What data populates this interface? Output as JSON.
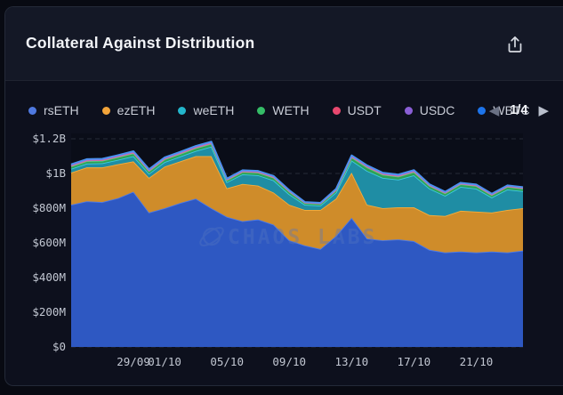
{
  "card": {
    "title": "Collateral Against Distribution"
  },
  "toolbar": {
    "share_icon": "export-share-icon"
  },
  "legend": {
    "items": [
      {
        "label": "rsETH",
        "color": "#4f79e0"
      },
      {
        "label": "ezETH",
        "color": "#f2a43a"
      },
      {
        "label": "weETH",
        "color": "#23b6cc"
      },
      {
        "label": "WETH",
        "color": "#35bd67"
      },
      {
        "label": "USDT",
        "color": "#e8486f"
      },
      {
        "label": "USDC",
        "color": "#8a5fd6"
      },
      {
        "label": "WBTC",
        "color": "#1d74ea"
      }
    ],
    "pagination": {
      "current": 1,
      "total": 4,
      "label": "1/4",
      "prev_glyph": "◀",
      "next_glyph": "▶"
    }
  },
  "watermark": {
    "text": "CHAOS LABS",
    "logo": "chaos-labs-atom-logo"
  },
  "chart_data": {
    "type": "area",
    "stacked": true,
    "title": "Collateral Against Distribution",
    "unit": "USD",
    "ylim": [
      0,
      1200
    ],
    "grid": "horizontal-dashed",
    "legend_position": "top",
    "x": [
      "25/09",
      "26/09",
      "27/09",
      "28/09",
      "29/09",
      "30/09",
      "01/10",
      "02/10",
      "03/10",
      "04/10",
      "05/10",
      "06/10",
      "07/10",
      "08/10",
      "09/10",
      "10/10",
      "11/10",
      "12/10",
      "13/10",
      "14/10",
      "15/10",
      "16/10",
      "17/10",
      "18/10",
      "19/10",
      "20/10",
      "21/10",
      "22/10",
      "23/10",
      "24/10"
    ],
    "x_ticks": [
      {
        "index": 4,
        "label": "29/09"
      },
      {
        "index": 6,
        "label": "01/10"
      },
      {
        "index": 10,
        "label": "05/10"
      },
      {
        "index": 14,
        "label": "09/10"
      },
      {
        "index": 18,
        "label": "13/10"
      },
      {
        "index": 22,
        "label": "17/10"
      },
      {
        "index": 26,
        "label": "21/10"
      }
    ],
    "y_ticks": [
      {
        "value": 0,
        "label": "$0"
      },
      {
        "value": 200,
        "label": "$200M"
      },
      {
        "value": 400,
        "label": "$400M"
      },
      {
        "value": 600,
        "label": "$600M"
      },
      {
        "value": 800,
        "label": "$800M"
      },
      {
        "value": 1000,
        "label": "$1B"
      },
      {
        "value": 1200,
        "label": "$1.2B"
      }
    ],
    "value_unit": "millions_usd",
    "series": [
      {
        "name": "rsETH",
        "fill": "#2e58c2",
        "edge": "#4c7ae8",
        "values": [
          820,
          840,
          835,
          858,
          895,
          775,
          800,
          830,
          855,
          800,
          750,
          725,
          735,
          705,
          615,
          585,
          565,
          640,
          745,
          625,
          615,
          620,
          610,
          560,
          545,
          550,
          545,
          550,
          545,
          555
        ]
      },
      {
        "name": "ezETH",
        "fill": "#cf8c2a",
        "edge": "#f5ad3c",
        "values": [
          185,
          195,
          200,
          195,
          175,
          200,
          240,
          240,
          245,
          300,
          165,
          215,
          195,
          185,
          205,
          205,
          225,
          215,
          260,
          195,
          185,
          185,
          195,
          200,
          210,
          235,
          235,
          225,
          245,
          245
        ]
      },
      {
        "name": "weETH",
        "fill": "#1f8da4",
        "edge": "#3ecbe0",
        "values": [
          22,
          22,
          24,
          26,
          30,
          24,
          26,
          28,
          30,
          55,
          35,
          55,
          60,
          70,
          60,
          30,
          25,
          35,
          70,
          195,
          175,
          160,
          185,
          153,
          117,
          138,
          133,
          87,
          118,
          98
        ]
      },
      {
        "name": "WETH",
        "fill": "#2fa055",
        "edge": "#52d584",
        "values": [
          14,
          14,
          14,
          15,
          16,
          14,
          15,
          15,
          16,
          16,
          12,
          14,
          15,
          16,
          15,
          10,
          10,
          12,
          18,
          20,
          18,
          17,
          18,
          16,
          14,
          15,
          15,
          13,
          15,
          15
        ]
      },
      {
        "name": "USDT",
        "fill": "#d84672",
        "edge": "#e86a90",
        "values": [
          4,
          4,
          4,
          4,
          4,
          4,
          4,
          4,
          4,
          4,
          3,
          3,
          3,
          3,
          3,
          2,
          2,
          3,
          4,
          4,
          4,
          4,
          4,
          3,
          3,
          3,
          3,
          3,
          3,
          3
        ]
      },
      {
        "name": "USDC",
        "fill": "#7c57c8",
        "edge": "#9a77e0",
        "values": [
          4,
          4,
          4,
          4,
          5,
          4,
          4,
          4,
          5,
          5,
          3,
          4,
          4,
          4,
          3,
          2,
          2,
          3,
          4,
          4,
          4,
          4,
          4,
          3,
          3,
          3,
          3,
          3,
          3,
          3
        ]
      },
      {
        "name": "WBTC",
        "fill": "#1f6fe0",
        "edge": "#4a92f0",
        "values": [
          4,
          4,
          4,
          4,
          4,
          4,
          4,
          4,
          4,
          4,
          3,
          3,
          3,
          3,
          3,
          2,
          2,
          3,
          4,
          4,
          4,
          4,
          4,
          3,
          3,
          3,
          3,
          3,
          3,
          3
        ]
      }
    ]
  }
}
